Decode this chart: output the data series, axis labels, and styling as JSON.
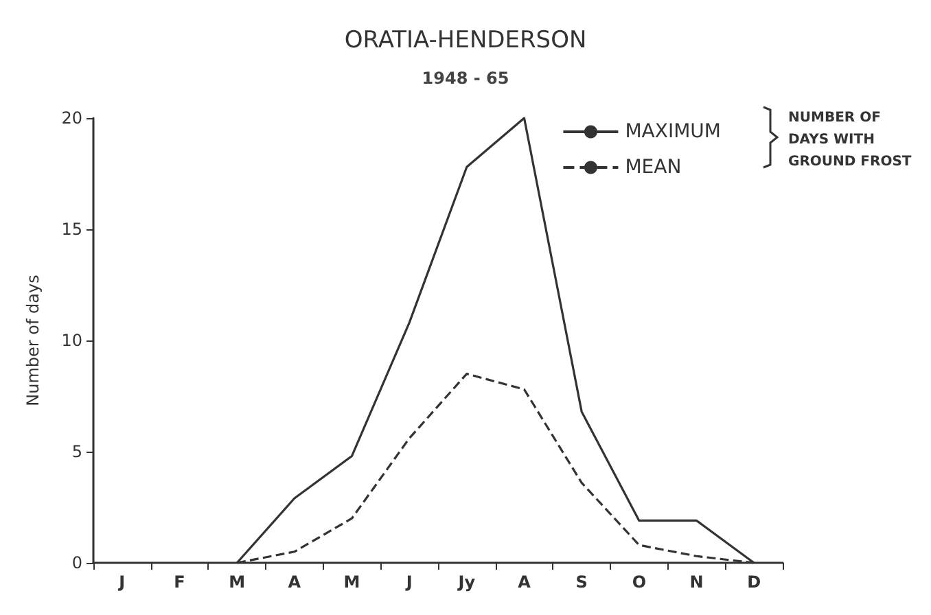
{
  "chart_data": {
    "type": "line",
    "title": "ORATIA-HENDERSON",
    "subtitle": "1948 - 65",
    "ylabel": "Number of days",
    "legend_title": "NUMBER OF\nDAYS WITH\nGROUND FROST",
    "categories": [
      "J",
      "F",
      "M",
      "A",
      "M",
      "J",
      "Jy",
      "A",
      "S",
      "O",
      "N",
      "D"
    ],
    "series": [
      {
        "name": "MAXIMUM",
        "color": "#333333",
        "line_style": "solid",
        "values": [
          null,
          null,
          0,
          2.9,
          4.8,
          10.8,
          17.8,
          20,
          6.8,
          1.9,
          1.9,
          0
        ]
      },
      {
        "name": "MEAN",
        "color": "#333333",
        "line_style": "dashed",
        "values": [
          null,
          null,
          0,
          0.5,
          2.0,
          5.6,
          8.5,
          7.8,
          3.6,
          0.8,
          0.3,
          0
        ]
      }
    ],
    "ylim": [
      0,
      20
    ],
    "yticks": [
      0,
      5,
      10,
      15,
      20
    ],
    "grid": false,
    "legend": "top right",
    "marker": "none"
  }
}
